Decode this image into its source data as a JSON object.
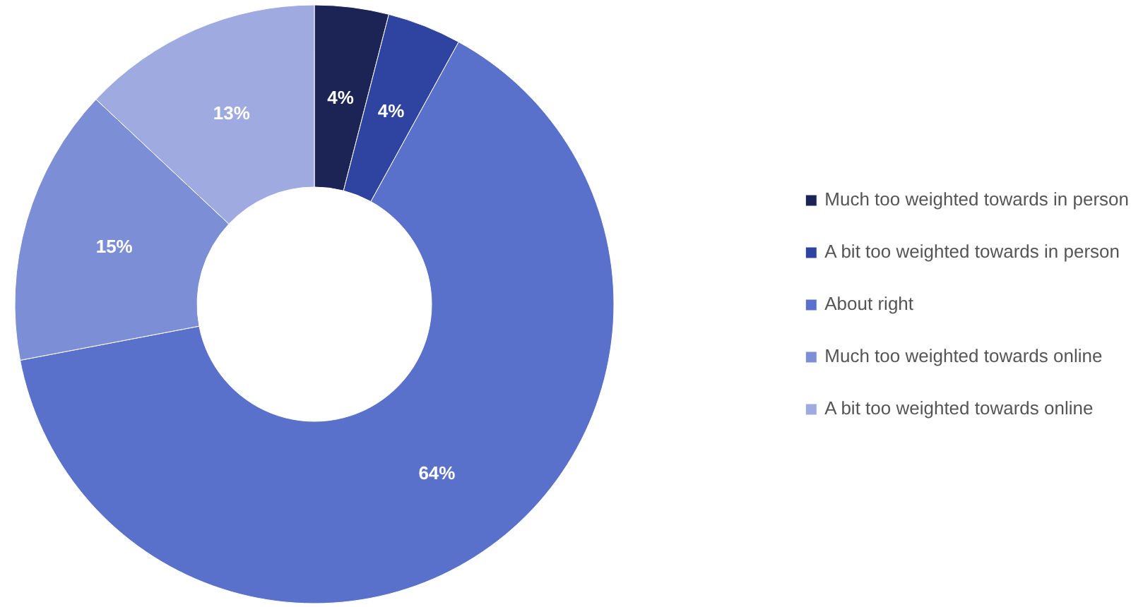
{
  "chart_data": {
    "type": "donut",
    "categories": [
      "Much too weighted towards in person",
      "A bit too weighted towards in person",
      "About right",
      "Much too weighted towards online",
      "A bit too weighted towards online"
    ],
    "values": [
      4,
      4,
      64,
      15,
      13
    ],
    "value_labels": [
      "4%",
      "4%",
      "64%",
      "15%",
      "13%"
    ],
    "colors": [
      "#1b2455",
      "#2e44a0",
      "#5a71cc",
      "#7b8ed6",
      "#9eaae0"
    ],
    "legend": "right"
  }
}
